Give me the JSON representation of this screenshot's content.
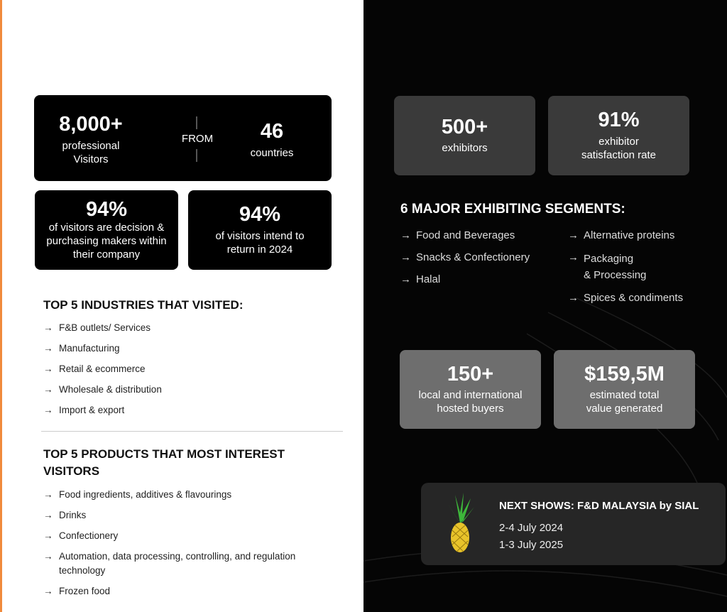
{
  "left": {
    "visitors": {
      "value": "8,000+",
      "label": "professional Visitors",
      "from": "FROM",
      "countries_value": "46",
      "countries_label": "countries"
    },
    "decision": {
      "value": "94%",
      "label": "of visitors are decision & purchasing makers within their company"
    },
    "return": {
      "value": "94%",
      "label": "of visitors intend to return in 2024"
    },
    "industries": {
      "title": "TOP 5 INDUSTRIES THAT VISITED:",
      "items": [
        "F&B outlets/ Services",
        "Manufacturing",
        "Retail & ecommerce",
        "Wholesale & distribution",
        "Import & export"
      ]
    },
    "products": {
      "title": "TOP 5 PRODUCTS THAT MOST INTEREST VISITORS",
      "items": [
        "Food ingredients, additives & flavourings",
        "Drinks",
        "Confectionery",
        "Automation, data processing, controlling, and regulation technology",
        "Frozen food"
      ]
    }
  },
  "right": {
    "exhibitors": {
      "value": "500+",
      "label": "exhibitors"
    },
    "satisfaction": {
      "value": "91%",
      "label": "exhibitor satisfaction rate"
    },
    "segments": {
      "title": "6 MAJOR EXHIBITING SEGMENTS:",
      "col1": [
        "Food and Beverages",
        "Snacks & Confectionery",
        "Halal"
      ],
      "col2": [
        "Alternative proteins",
        "Packaging\n& Processing",
        "Spices & condiments"
      ]
    },
    "buyers": {
      "value": "150+",
      "label": "local and international hosted buyers"
    },
    "value": {
      "value": "$159,5M",
      "label": "estimated total value generated"
    },
    "next": {
      "title": "NEXT SHOWS: F&D MALAYSIA by SIAL",
      "dates": [
        "2-4 July 2024",
        "1-3 July 2025"
      ],
      "icon": "pineapple-icon"
    }
  },
  "arrow": "→",
  "colors": {
    "accent": "#f08a3c"
  }
}
